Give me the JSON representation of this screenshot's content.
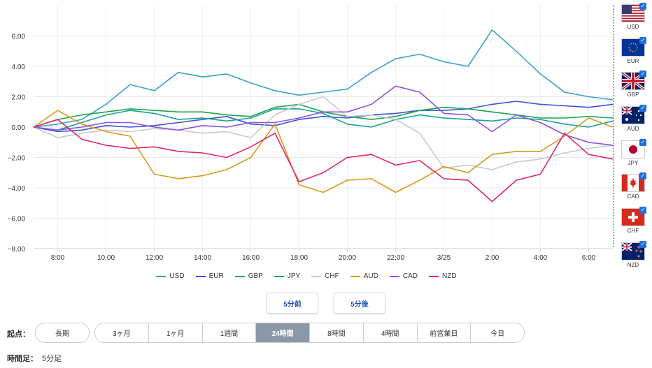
{
  "chart_data": {
    "type": "line",
    "title": "",
    "xlabel": "",
    "ylabel": "",
    "ylim": [
      -8,
      8
    ],
    "yticks": [
      "6.00",
      "4.00",
      "2.00",
      "0.00",
      "−2.00",
      "−4.00",
      "−6.00",
      "−8.00"
    ],
    "ytick_values": [
      6,
      4,
      2,
      0,
      -2,
      -4,
      -6,
      -8
    ],
    "xrange": [
      7,
      31
    ],
    "xticks": [
      "8:00",
      "10:00",
      "12:00",
      "14:00",
      "16:00",
      "18:00",
      "20:00",
      "22:00",
      "3/25",
      "2:00",
      "4:00",
      "6:00"
    ],
    "xtick_values": [
      8,
      10,
      12,
      14,
      16,
      18,
      20,
      22,
      24,
      26,
      28,
      30
    ],
    "x": [
      7,
      8,
      9,
      10,
      11,
      12,
      13,
      14,
      15,
      16,
      17,
      18,
      19,
      20,
      21,
      22,
      23,
      24,
      25,
      26,
      27,
      28,
      29,
      30,
      31
    ],
    "series": [
      {
        "name": "USD",
        "color": "#3a9fd0",
        "values": [
          0,
          0.2,
          0.5,
          1.5,
          2.8,
          2.4,
          3.6,
          3.3,
          3.5,
          2.9,
          2.4,
          2.1,
          2.3,
          2.5,
          3.6,
          4.5,
          4.8,
          4.3,
          4.0,
          6.4,
          5.0,
          3.5,
          2.3,
          2.0,
          1.8
        ]
      },
      {
        "name": "EUR",
        "color": "#3f51d6",
        "values": [
          0,
          -0.3,
          -0.2,
          0.1,
          0.0,
          0.1,
          0.3,
          0.5,
          0.7,
          0.2,
          0.1,
          0.5,
          0.7,
          0.6,
          0.8,
          0.9,
          1.1,
          1.1,
          1.2,
          1.5,
          1.7,
          1.5,
          1.4,
          1.3,
          1.5
        ]
      },
      {
        "name": "GBP",
        "color": "#16a391",
        "values": [
          0,
          -0.2,
          0.3,
          0.8,
          1.1,
          0.9,
          0.5,
          0.6,
          0.4,
          0.6,
          1.2,
          1.2,
          0.9,
          0.2,
          0.0,
          0.5,
          0.8,
          0.6,
          0.5,
          0.4,
          0.6,
          0.5,
          0.2,
          0.0,
          0.4
        ]
      },
      {
        "name": "JPY",
        "color": "#1fa34a",
        "values": [
          0,
          0.5,
          0.8,
          1.0,
          1.2,
          1.1,
          1.0,
          1.0,
          0.8,
          0.7,
          1.3,
          1.5,
          1.0,
          0.7,
          0.5,
          0.7,
          1.1,
          1.3,
          1.2,
          1.0,
          0.8,
          0.6,
          0.6,
          0.7,
          0.6
        ]
      },
      {
        "name": "CHF",
        "color": "#c7c9cc",
        "values": [
          0,
          -0.7,
          -0.4,
          -0.2,
          -0.3,
          -0.1,
          -0.2,
          -0.4,
          -0.3,
          -0.7,
          0.8,
          1.5,
          2.0,
          0.7,
          0.8,
          0.5,
          -0.4,
          -2.7,
          -2.5,
          -2.8,
          -2.3,
          -2.1,
          -1.7,
          -1.4,
          -1.2
        ]
      },
      {
        "name": "AUD",
        "color": "#d89b1b",
        "values": [
          0,
          1.1,
          0.2,
          -0.3,
          -0.6,
          -3.1,
          -3.4,
          -3.2,
          -2.8,
          -2.0,
          0.2,
          -3.8,
          -4.3,
          -3.5,
          -3.4,
          -4.3,
          -3.5,
          -2.6,
          -3.0,
          -1.8,
          -1.6,
          -1.6,
          -0.6,
          0.6,
          0.0
        ]
      },
      {
        "name": "CAD",
        "color": "#8a52e6",
        "values": [
          0,
          -0.2,
          0.0,
          0.3,
          0.3,
          0.0,
          -0.2,
          0.1,
          0.0,
          0.3,
          0.3,
          0.6,
          1.0,
          1.0,
          1.5,
          2.7,
          2.3,
          0.9,
          0.8,
          -0.3,
          0.8,
          0.3,
          -0.5,
          -1.0,
          -1.2
        ]
      },
      {
        "name": "NZD",
        "color": "#e0266c",
        "values": [
          0,
          0.5,
          -0.8,
          -1.2,
          -1.4,
          -1.3,
          -1.6,
          -1.7,
          -2.0,
          -1.3,
          -0.4,
          -3.6,
          -3.0,
          -2.0,
          -1.8,
          -2.5,
          -2.2,
          -3.4,
          -3.5,
          -4.9,
          -3.5,
          -3.1,
          -0.4,
          -1.8,
          -2.1
        ]
      }
    ]
  },
  "currencies": [
    {
      "code": "USD",
      "flag": "us"
    },
    {
      "code": "EUR",
      "flag": "eu"
    },
    {
      "code": "GBP",
      "flag": "gb"
    },
    {
      "code": "AUD",
      "flag": "au"
    },
    {
      "code": "JPY",
      "flag": "jp"
    },
    {
      "code": "CAD",
      "flag": "ca"
    },
    {
      "code": "CHF",
      "flag": "ch"
    },
    {
      "code": "NZD",
      "flag": "nz"
    }
  ],
  "nav": {
    "prev": "5分前",
    "next": "5分後"
  },
  "start": {
    "label": "起点：",
    "long": "長期",
    "options": [
      "3ヶ月",
      "1ヶ月",
      "1週間",
      "24時間",
      "8時間",
      "4時間",
      "前営業日",
      "今日"
    ],
    "active_index": 3
  },
  "timeframe": {
    "label": "時間足：",
    "value": "5分足"
  }
}
